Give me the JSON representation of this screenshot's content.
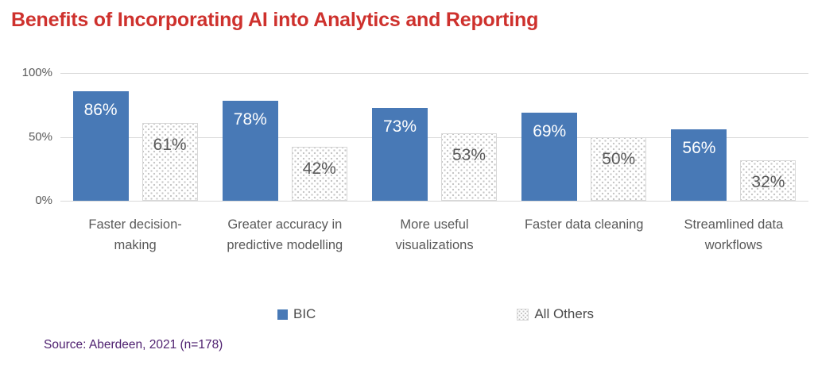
{
  "title": "Benefits of Incorporating AI into Analytics and Reporting",
  "source": "Source: Aberdeen, 2021 (n=178)",
  "colors": {
    "title": "#CE312D",
    "bic_bar": "#4879B6",
    "pattern_dot": "#C6C6C6",
    "grid": "#D9D9D9",
    "label_dark": "#595959",
    "value_on_bic": "#FFFFFF",
    "source_text": "#4F2170"
  },
  "y_axis": {
    "ticks": [
      "100%",
      "50%",
      "0%"
    ],
    "min": 0,
    "max": 100
  },
  "legend": {
    "items": [
      {
        "label": "BIC",
        "swatch": "solid-blue"
      },
      {
        "label": "All Others",
        "swatch": "dotted-pattern"
      }
    ]
  },
  "chart_data": {
    "type": "bar",
    "title": "Benefits of Incorporating AI into Analytics and Reporting",
    "categories": [
      "Faster decision-making",
      "Greater accuracy in predictive modelling",
      "More useful visualizations",
      "Faster data cleaning",
      "Streamlined data workflows"
    ],
    "series": [
      {
        "name": "BIC",
        "values": [
          86,
          78,
          73,
          69,
          56
        ]
      },
      {
        "name": "All Others",
        "values": [
          61,
          42,
          53,
          50,
          32
        ]
      }
    ],
    "value_suffix": "%",
    "xlabel": "",
    "ylabel": "",
    "ylim": [
      0,
      100
    ],
    "grid": true,
    "legend_position": "bottom"
  }
}
